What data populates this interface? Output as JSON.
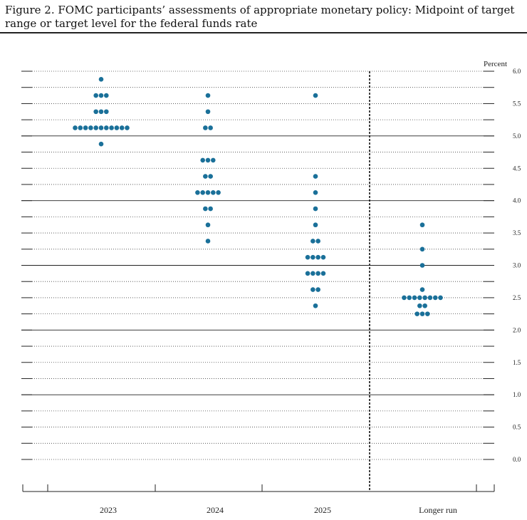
{
  "figure": {
    "title": "Figure 2.  FOMC participants’ assessments of appropriate monetary policy: Midpoint of target range or target level for the federal funds rate"
  },
  "colors": {
    "dot": "#1a7099",
    "axis": "#222222"
  },
  "chart_data": {
    "type": "scatter",
    "ylabel": "Percent",
    "ylim": [
      0,
      6
    ],
    "yticks": [
      "0.0",
      "0.5",
      "1.0",
      "1.5",
      "2.0",
      "2.5",
      "3.0",
      "3.5",
      "4.0",
      "4.5",
      "5.0",
      "5.5",
      "6.0"
    ],
    "grid": true,
    "categories": [
      "2023",
      "2024",
      "2025",
      "Longer run"
    ],
    "dots": [
      [
        {
          "y": 5.875,
          "count": 1
        },
        {
          "y": 5.625,
          "count": 3
        },
        {
          "y": 5.375,
          "count": 3
        },
        {
          "y": 5.125,
          "count": 11
        },
        {
          "y": 4.875,
          "count": 1
        }
      ],
      [
        {
          "y": 5.625,
          "count": 1
        },
        {
          "y": 5.375,
          "count": 1
        },
        {
          "y": 5.125,
          "count": 2
        },
        {
          "y": 4.625,
          "count": 3
        },
        {
          "y": 4.375,
          "count": 2
        },
        {
          "y": 4.125,
          "count": 5
        },
        {
          "y": 3.875,
          "count": 2
        },
        {
          "y": 3.625,
          "count": 1
        },
        {
          "y": 3.375,
          "count": 1
        }
      ],
      [
        {
          "y": 5.625,
          "count": 1
        },
        {
          "y": 4.375,
          "count": 1
        },
        {
          "y": 4.125,
          "count": 1
        },
        {
          "y": 3.875,
          "count": 1
        },
        {
          "y": 3.625,
          "count": 1
        },
        {
          "y": 3.375,
          "count": 2
        },
        {
          "y": 3.125,
          "count": 4
        },
        {
          "y": 2.875,
          "count": 4
        },
        {
          "y": 2.625,
          "count": 2
        },
        {
          "y": 2.375,
          "count": 1
        }
      ],
      [
        {
          "y": 3.625,
          "count": 1
        },
        {
          "y": 3.25,
          "count": 1
        },
        {
          "y": 3.0,
          "count": 1
        },
        {
          "y": 2.625,
          "count": 1
        },
        {
          "y": 2.5,
          "count": 8
        },
        {
          "y": 2.375,
          "count": 2
        },
        {
          "y": 2.25,
          "count": 3
        }
      ]
    ]
  }
}
